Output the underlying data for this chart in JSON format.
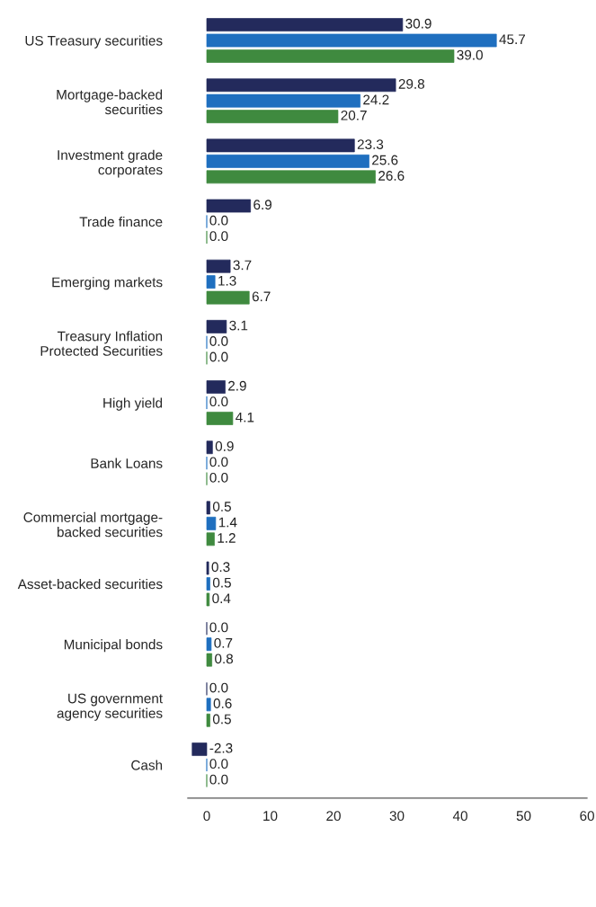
{
  "chart_data": {
    "type": "bar",
    "orientation": "horizontal",
    "categories": [
      "US Treasury securities",
      "Mortgage-backed\nsecurities",
      "Investment grade\ncorporates",
      "Trade finance",
      "Emerging markets",
      "Treasury Inflation\nProtected Securities",
      "High yield",
      "Bank Loans",
      "Commercial mortgage-\nbacked securities",
      "Asset-backed securities",
      "Municipal bonds",
      "US government\nagency securities",
      "Cash"
    ],
    "series": [
      {
        "color": "#232a5c",
        "values": [
          30.9,
          29.8,
          23.3,
          6.9,
          3.7,
          3.1,
          2.9,
          0.9,
          0.5,
          0.3,
          0.0,
          0.0,
          -2.3
        ],
        "value_labels": [
          "30.9",
          "29.8",
          "23.3",
          "6.9",
          "3.7",
          "3.1",
          "2.9",
          "0.9",
          "0.5",
          "0.3",
          "0.0",
          "0.0",
          "-2.3"
        ]
      },
      {
        "color": "#1f6fbf",
        "values": [
          45.7,
          24.2,
          25.6,
          0.0,
          1.3,
          0.0,
          0.0,
          0.0,
          1.4,
          0.5,
          0.7,
          0.6,
          0.0
        ],
        "value_labels": [
          "45.7",
          "24.2",
          "25.6",
          "0.0",
          "1.3",
          "0.0",
          "0.0",
          "0.0",
          "1.4",
          "0.5",
          "0.7",
          "0.6",
          "0.0"
        ]
      },
      {
        "color": "#3f8a3f",
        "values": [
          39.0,
          20.7,
          26.6,
          0.0,
          6.7,
          0.0,
          4.1,
          0.0,
          1.2,
          0.4,
          0.8,
          0.5,
          0.0
        ],
        "value_labels": [
          "39.0",
          "20.7",
          "26.6",
          "0.0",
          "6.7",
          "0.0",
          "4.1",
          "0.0",
          "1.2",
          "0.4",
          "0.8",
          "0.5",
          "0.0"
        ]
      }
    ],
    "xlim": [
      -3,
      60
    ],
    "xticks": [
      0,
      10,
      20,
      30,
      40,
      50,
      60
    ],
    "grid": false,
    "legend": false
  }
}
